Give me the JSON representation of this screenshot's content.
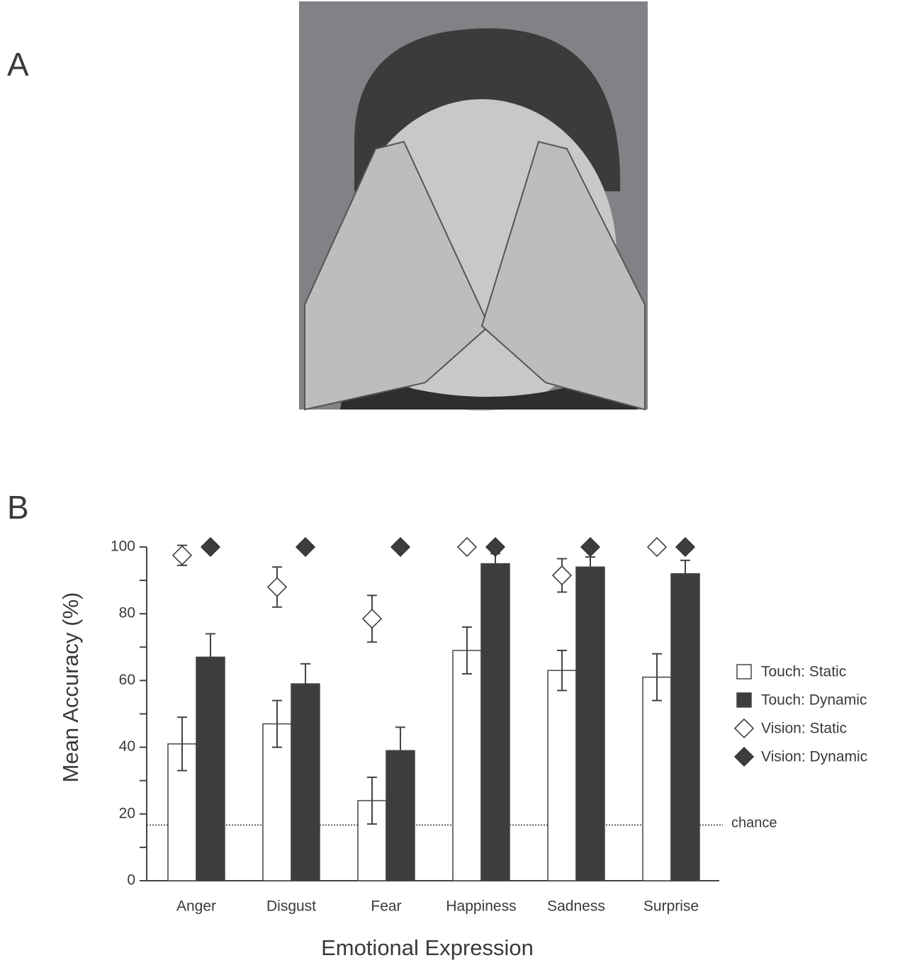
{
  "panels": {
    "a": "A",
    "b": "B"
  },
  "chart_data": {
    "type": "bar",
    "xlabel": "Emotional Expression",
    "ylabel": "Mean Accuracy (%)",
    "categories": [
      "Anger",
      "Disgust",
      "Fear",
      "Happiness",
      "Sadness",
      "Surprise"
    ],
    "ylim": [
      0,
      100
    ],
    "yticks": [
      0,
      20,
      40,
      60,
      80,
      100
    ],
    "minor_yticks": [
      10,
      30,
      50,
      70,
      90
    ],
    "series": [
      {
        "name": "Touch: Static",
        "kind": "bar",
        "color": "#ffffff",
        "values": [
          41,
          47,
          24,
          69,
          63,
          61
        ],
        "errors": [
          8,
          7,
          7,
          7,
          6,
          7
        ]
      },
      {
        "name": "Touch: Dynamic",
        "kind": "bar",
        "color": "#3d3d3f",
        "values": [
          67,
          59,
          39,
          95,
          94,
          92
        ],
        "errors": [
          7,
          6,
          7,
          3,
          3,
          4
        ]
      },
      {
        "name": "Vision: Static",
        "kind": "marker",
        "color": "#ffffff",
        "values": [
          97.5,
          88,
          78.5,
          100,
          91.5,
          100
        ],
        "errors": [
          3,
          6,
          7,
          null,
          5,
          null
        ]
      },
      {
        "name": "Vision: Dynamic",
        "kind": "marker",
        "color": "#3d3d3f",
        "values": [
          100,
          100,
          100,
          100,
          100,
          100
        ]
      }
    ],
    "reference_line": {
      "value": 16.7,
      "label": "chance"
    }
  }
}
